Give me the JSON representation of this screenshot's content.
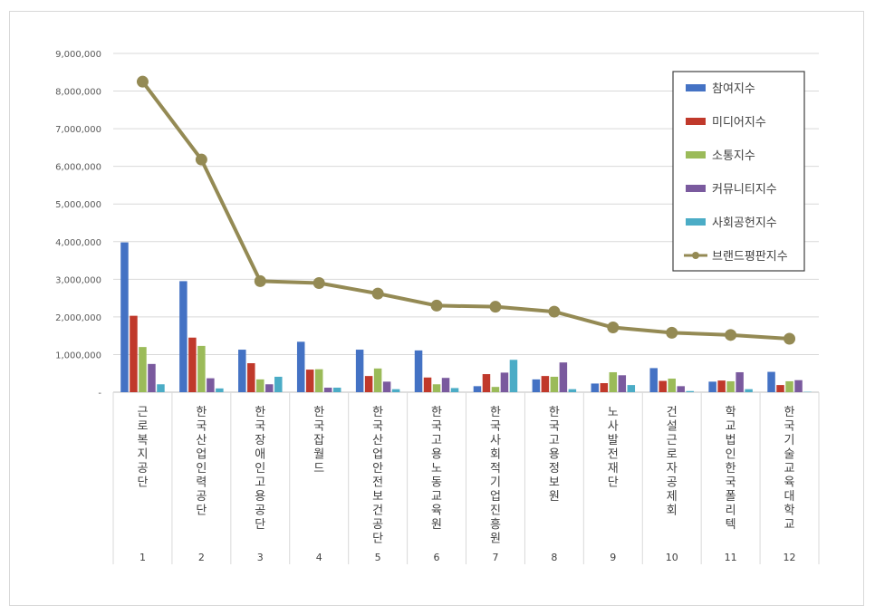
{
  "chart_data": {
    "type": "bar",
    "yticks": [
      "9,000,000",
      "8,000,000",
      "7,000,000",
      "6,000,000",
      "5,000,000",
      "4,000,000",
      "3,000,000",
      "2,000,000",
      "1,000,000",
      "-"
    ],
    "ylim": [
      0,
      9000000
    ],
    "grid": true,
    "legend_placement": "top-right",
    "categories": [
      {
        "name": "근로복지공단",
        "rank": "1"
      },
      {
        "name": "한국산업인력공단",
        "rank": "2"
      },
      {
        "name": "한국장애인고용공단",
        "rank": "3"
      },
      {
        "name": "한국잡월드",
        "rank": "4"
      },
      {
        "name": "한국산업안전보건공단",
        "rank": "5"
      },
      {
        "name": "한국고용노동교육원",
        "rank": "6"
      },
      {
        "name": "한국사회적기업진흥원",
        "rank": "7"
      },
      {
        "name": "한국고용정보원",
        "rank": "8"
      },
      {
        "name": "노사발전재단",
        "rank": "9"
      },
      {
        "name": "건설근로자공제회",
        "rank": "10"
      },
      {
        "name": "학교법인한국폴리텍",
        "rank": "11"
      },
      {
        "name": "한국기술교육대학교",
        "rank": "12"
      }
    ],
    "series": [
      {
        "name": "참여지수",
        "type": "bar",
        "color": "#4472c4",
        "values": [
          3980000,
          2950000,
          1130000,
          1340000,
          1130000,
          1110000,
          160000,
          340000,
          230000,
          640000,
          280000,
          540000
        ]
      },
      {
        "name": "미디어지수",
        "type": "bar",
        "color": "#c0392b",
        "values": [
          2030000,
          1450000,
          770000,
          600000,
          430000,
          390000,
          480000,
          430000,
          240000,
          300000,
          310000,
          190000
        ]
      },
      {
        "name": "소통지수",
        "type": "bar",
        "color": "#9bbb59",
        "values": [
          1200000,
          1230000,
          340000,
          610000,
          630000,
          210000,
          140000,
          410000,
          530000,
          360000,
          290000,
          290000
        ]
      },
      {
        "name": "커뮤니티지수",
        "type": "bar",
        "color": "#7a5a9e",
        "values": [
          750000,
          370000,
          210000,
          120000,
          280000,
          380000,
          520000,
          790000,
          450000,
          160000,
          530000,
          320000
        ]
      },
      {
        "name": "사회공헌지수",
        "type": "bar",
        "color": "#4bacc6",
        "values": [
          210000,
          100000,
          410000,
          120000,
          80000,
          110000,
          860000,
          80000,
          190000,
          30000,
          80000,
          10000
        ]
      },
      {
        "name": "브랜드평판지수",
        "type": "line",
        "color": "#948a54",
        "values": [
          8250000,
          6180000,
          2950000,
          2900000,
          2620000,
          2300000,
          2270000,
          2140000,
          1720000,
          1580000,
          1520000,
          1420000
        ]
      }
    ]
  }
}
